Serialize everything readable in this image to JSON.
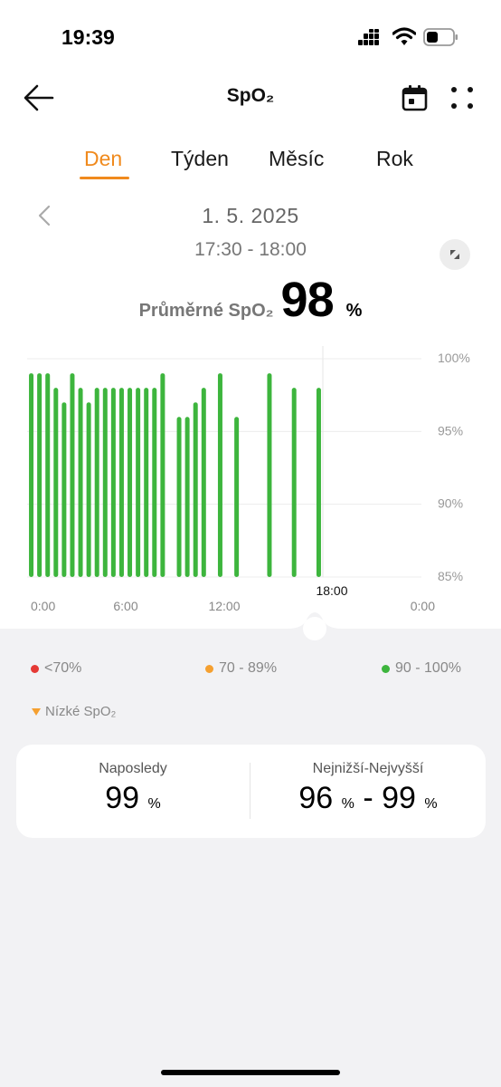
{
  "status_bar": {
    "time": "19:39"
  },
  "header": {
    "title": "SpO₂"
  },
  "tabs": [
    {
      "label": "Den",
      "active": true
    },
    {
      "label": "Týden",
      "active": false
    },
    {
      "label": "Měsíc",
      "active": false
    },
    {
      "label": "Rok",
      "active": false
    }
  ],
  "date": "1. 5. 2025",
  "time_range": "17:30 - 18:00",
  "summary": {
    "label": "Průměrné SpO₂",
    "value": "98",
    "unit": "%"
  },
  "chart_data": {
    "type": "bar",
    "x_tick_labels": [
      "0:00",
      "6:00",
      "12:00",
      "0:00"
    ],
    "y_tick_labels": [
      "100%",
      "95%",
      "90%",
      "85%"
    ],
    "ylim": [
      85,
      100
    ],
    "selected_time_label": "18:00",
    "bar_color": "#3db53d",
    "bars": [
      {
        "t": 0.25,
        "v": 99
      },
      {
        "t": 0.75,
        "v": 99
      },
      {
        "t": 1.25,
        "v": 99
      },
      {
        "t": 1.75,
        "v": 98
      },
      {
        "t": 2.25,
        "v": 97
      },
      {
        "t": 2.75,
        "v": 99
      },
      {
        "t": 3.25,
        "v": 98
      },
      {
        "t": 3.75,
        "v": 97
      },
      {
        "t": 4.25,
        "v": 98
      },
      {
        "t": 4.75,
        "v": 98
      },
      {
        "t": 5.25,
        "v": 98
      },
      {
        "t": 5.75,
        "v": 98
      },
      {
        "t": 6.25,
        "v": 98
      },
      {
        "t": 6.75,
        "v": 98
      },
      {
        "t": 7.25,
        "v": 98
      },
      {
        "t": 7.75,
        "v": 98
      },
      {
        "t": 8.25,
        "v": 99
      },
      {
        "t": 9.25,
        "v": 96
      },
      {
        "t": 9.75,
        "v": 96
      },
      {
        "t": 10.25,
        "v": 97
      },
      {
        "t": 10.75,
        "v": 98
      },
      {
        "t": 11.75,
        "v": 99
      },
      {
        "t": 12.75,
        "v": 96
      },
      {
        "t": 14.75,
        "v": 99
      },
      {
        "t": 16.25,
        "v": 98
      },
      {
        "t": 17.75,
        "v": 98
      }
    ]
  },
  "legend": [
    {
      "label": "<70%",
      "color": "#e53935"
    },
    {
      "label": "70 - 89%",
      "color": "#f5a030"
    },
    {
      "label": "90 - 100%",
      "color": "#3db53d"
    }
  ],
  "low_marker": {
    "label": "Nízké SpO₂",
    "color": "#f5a030"
  },
  "stats": {
    "last": {
      "label": "Naposledy",
      "value": "99",
      "unit": "%"
    },
    "range": {
      "label": "Nejnižší-Nejvyšší",
      "min": "96",
      "max": "99",
      "unit": "%",
      "separator": "-"
    }
  }
}
